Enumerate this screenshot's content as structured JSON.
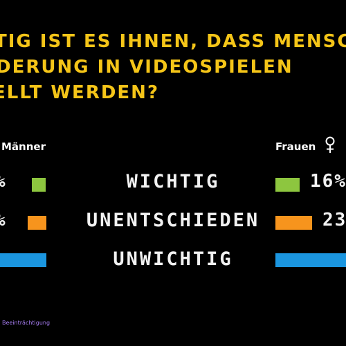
{
  "colors": {
    "background": "#000000",
    "title": "#f5c518",
    "important": "#8dc63f",
    "undecided": "#f7941d",
    "unimportant": "#1b96e0",
    "footnote": "#a57cf0"
  },
  "title": {
    "lines": [
      "TIG IST ES IHNEN, DASS MENSC",
      "DERUNG IN VIDEOSPIELEN",
      "ELLT WERDEN?"
    ]
  },
  "legend": {
    "men_label": "Männer",
    "women_label": "Frauen",
    "women_icon": "female-symbol-icon"
  },
  "chart_data": {
    "type": "bar",
    "categories": [
      "WICHTIG",
      "UNENTSCHIEDEN",
      "UNWICHTIG"
    ],
    "series": [
      {
        "name": "Männer",
        "value_labels": [
          "%",
          "%",
          ""
        ]
      },
      {
        "name": "Frauen",
        "values": [
          16,
          23,
          null
        ],
        "value_labels": [
          "16%",
          "23",
          ""
        ]
      }
    ]
  },
  "footnote": "Beeinträchtigung"
}
